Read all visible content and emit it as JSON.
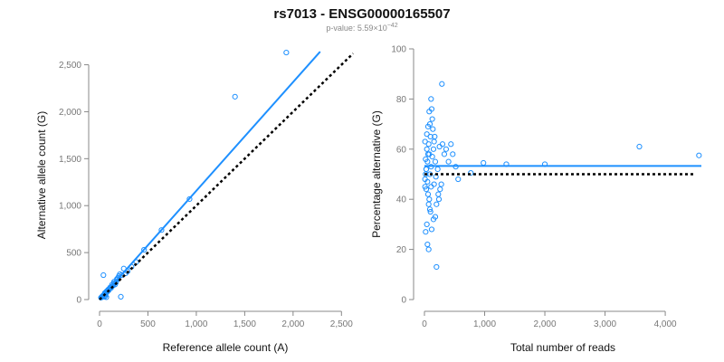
{
  "chart_data": [
    {
      "type": "scatter",
      "xlabel": "Reference allele count (A)",
      "ylabel": "Alternative allele count (G)",
      "xlim": [
        0,
        2600
      ],
      "ylim": [
        0,
        2650
      ],
      "xticks": [
        0,
        500,
        1000,
        1500,
        2000,
        2500
      ],
      "yticks": [
        0,
        500,
        1000,
        1500,
        2000,
        2500
      ],
      "xtick_labels": [
        "0",
        "500",
        "1,000",
        "1,500",
        "2,000",
        "2,500"
      ],
      "ytick_labels": [
        "0",
        "500",
        "1,000",
        "1,500",
        "2,000",
        "2,500"
      ],
      "grid": false,
      "point_color": "#1e90ff",
      "series": [
        {
          "kind": "points",
          "x": [
            1930,
            1400,
            930,
            640,
            460,
            380,
            330,
            290,
            270,
            250,
            230,
            220,
            200,
            190,
            180,
            170,
            160,
            150,
            140,
            130,
            120,
            110,
            100,
            95,
            90,
            85,
            80,
            75,
            70,
            65,
            60,
            55,
            50,
            45,
            40,
            35,
            30,
            25,
            20,
            15,
            40,
            210,
            180,
            150,
            130,
            110,
            95,
            85,
            75,
            65,
            55,
            45,
            35,
            60,
            50,
            70
          ],
          "y": [
            2630,
            2160,
            1070,
            740,
            530,
            400,
            350,
            300,
            280,
            330,
            260,
            30,
            250,
            230,
            210,
            180,
            160,
            175,
            150,
            140,
            125,
            120,
            110,
            100,
            105,
            90,
            95,
            80,
            85,
            75,
            60,
            70,
            55,
            50,
            45,
            40,
            35,
            30,
            25,
            20,
            260,
            270,
            220,
            190,
            160,
            130,
            110,
            95,
            80,
            65,
            55,
            45,
            35,
            40,
            30,
            25
          ]
        },
        {
          "kind": "fit",
          "style": "solid",
          "color": "#1e90ff",
          "x": [
            0,
            2280
          ],
          "y": [
            0,
            2640
          ]
        },
        {
          "kind": "reference",
          "style": "dotted",
          "color": "#000000",
          "x": [
            0,
            2620
          ],
          "y": [
            0,
            2620
          ]
        }
      ]
    },
    {
      "type": "scatter",
      "xlabel": "Total number of reads",
      "ylabel": "Percentage alternative (G)",
      "xlim": [
        0,
        4600
      ],
      "ylim": [
        0,
        100
      ],
      "xticks": [
        0,
        1000,
        2000,
        3000,
        4000
      ],
      "yticks": [
        0,
        20,
        40,
        60,
        80,
        100
      ],
      "xtick_labels": [
        "0",
        "1,000",
        "2,000",
        "3,000",
        "4,000"
      ],
      "ytick_labels": [
        "0",
        "20",
        "40",
        "60",
        "80",
        "100"
      ],
      "grid": false,
      "point_color": "#1e90ff",
      "series": [
        {
          "kind": "points",
          "x": [
            4560,
            3570,
            2000,
            1360,
            980,
            770,
            560,
            520,
            470,
            440,
            400,
            360,
            330,
            300,
            280,
            260,
            240,
            220,
            200,
            290,
            180,
            170,
            160,
            150,
            140,
            130,
            120,
            110,
            100,
            90,
            80,
            70,
            60,
            50,
            40,
            30,
            20,
            10,
            200,
            180,
            150,
            120,
            100,
            80,
            60,
            40,
            20,
            10,
            30,
            50,
            70,
            90,
            110,
            130,
            160,
            190,
            230,
            250,
            110,
            90,
            70,
            50,
            30,
            20,
            10,
            40,
            60,
            80
          ],
          "y": [
            57.5,
            61,
            54,
            54,
            54.5,
            50.5,
            48,
            53,
            58,
            62,
            55,
            60,
            58,
            62,
            46,
            44,
            40,
            52,
            13,
            86,
            55,
            65,
            63,
            60,
            68,
            72,
            76,
            80,
            65,
            70,
            75,
            62,
            58,
            55,
            60,
            52,
            50,
            48,
            38,
            33,
            32,
            28,
            35,
            40,
            42,
            30,
            27,
            45,
            44,
            22,
            20,
            50,
            53,
            57,
            46,
            49,
            42,
            61,
            45,
            36,
            38,
            47,
            52,
            56,
            63,
            66,
            69,
            58
          ]
        },
        {
          "kind": "fit",
          "style": "solid",
          "color": "#1e90ff",
          "x": [
            0,
            4600
          ],
          "y": [
            53.3,
            53.3
          ]
        },
        {
          "kind": "reference",
          "style": "dotted",
          "color": "#000000",
          "x": [
            0,
            4480
          ],
          "y": [
            50,
            50
          ]
        }
      ]
    }
  ],
  "header": {
    "title": "rs7013 - ENSG00000165507",
    "pvalue_prefix": "p-value: 5.59×10",
    "pvalue_exponent": "−42"
  }
}
